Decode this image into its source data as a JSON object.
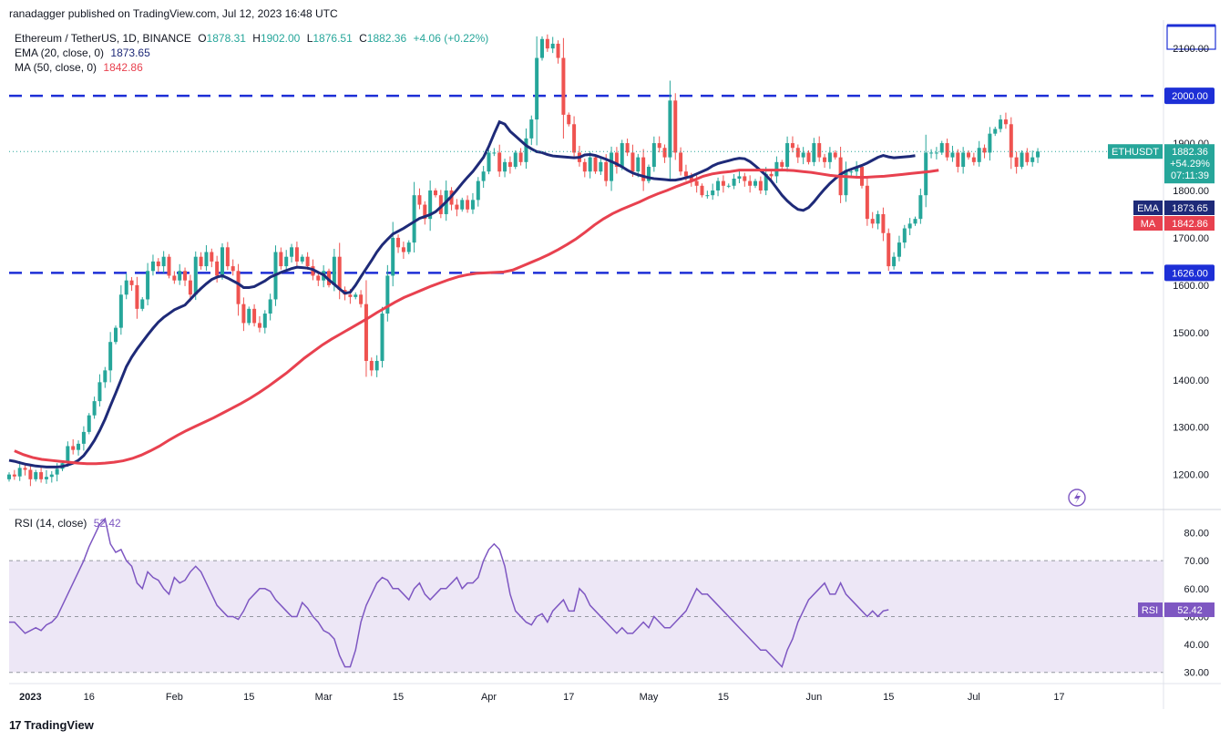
{
  "header": {
    "publisher_line": "ranadagger published on TradingView.com, Jul 12, 2023 16:48 UTC",
    "symbol": "Ethereum / TetherUS, 1D, BINANCE",
    "ohlc": {
      "open_label": "O",
      "open": "1878.31",
      "high_label": "H",
      "high": "1902.00",
      "low_label": "L",
      "low": "1876.51",
      "close_label": "C",
      "close": "1882.36",
      "change": "+4.06 (+0.22%)"
    },
    "ema_label": "EMA (20, close, 0)",
    "ema_value": "1873.65",
    "ma_label": "MA (50, close, 0)",
    "ma_value": "1842.86",
    "rsi_label": "RSI (14, close)",
    "rsi_value": "52.42"
  },
  "footer": {
    "brand": "TradingView",
    "logo_glyph": "17"
  },
  "colors": {
    "up": "#26a69a",
    "down": "#ef5350",
    "ema": "#1e2a78",
    "ma": "#e8414f",
    "level": "#1d2fd6",
    "rsi": "#7e57c2",
    "rsi_band": "#ede7f6",
    "label_bg": "#1d2fd6"
  },
  "chart_data": [
    {
      "type": "candlestick",
      "title": "Ethereum / TetherUS, 1D, BINANCE",
      "ylim": [
        1130,
        2160
      ],
      "y_ticks": [
        1200,
        1300,
        1400,
        1500,
        1600,
        1700,
        1800,
        1900,
        2000,
        2100
      ],
      "y_tick_labels": [
        "1200.00",
        "1300.00",
        "1400.00",
        "1500.00",
        "1600.00",
        "1700.00",
        "1800.00",
        "1900.00",
        "2000.00",
        "2100.00"
      ],
      "x_tick_labels": [
        {
          "day": 4,
          "label": "2023"
        },
        {
          "day": 15,
          "label": "16"
        },
        {
          "day": 31,
          "label": "Feb"
        },
        {
          "day": 45,
          "label": "15"
        },
        {
          "day": 59,
          "label": "Mar"
        },
        {
          "day": 73,
          "label": "15"
        },
        {
          "day": 90,
          "label": "Apr"
        },
        {
          "day": 105,
          "label": "17"
        },
        {
          "day": 120,
          "label": "May"
        },
        {
          "day": 134,
          "label": "15"
        },
        {
          "day": 151,
          "label": "Jun"
        },
        {
          "day": 165,
          "label": "15"
        },
        {
          "day": 181,
          "label": "Jul"
        },
        {
          "day": 197,
          "label": "17"
        }
      ],
      "horizontal_levels": [
        {
          "value": 2000,
          "label": "2000.00"
        },
        {
          "value": 1626,
          "label": "1626.00"
        }
      ],
      "price_tag": {
        "symbol": "ETHUSDT",
        "value": "1882.36",
        "change": "+54.29%",
        "countdown": "07:11:39"
      },
      "ema_tag": {
        "name": "EMA",
        "value": "1873.65"
      },
      "ma_tag": {
        "name": "MA",
        "value": "1842.86"
      },
      "closes": [
        1200,
        1196,
        1214,
        1210,
        1190,
        1205,
        1190,
        1195,
        1200,
        1212,
        1224,
        1260,
        1252,
        1265,
        1290,
        1325,
        1355,
        1395,
        1420,
        1480,
        1510,
        1580,
        1610,
        1600,
        1550,
        1570,
        1630,
        1650,
        1640,
        1660,
        1620,
        1610,
        1630,
        1610,
        1580,
        1660,
        1640,
        1670,
        1650,
        1620,
        1680,
        1640,
        1630,
        1560,
        1520,
        1550,
        1520,
        1510,
        1540,
        1570,
        1670,
        1640,
        1660,
        1680,
        1650,
        1660,
        1640,
        1620,
        1610,
        1630,
        1600,
        1660,
        1590,
        1580,
        1575,
        1580,
        1560,
        1440,
        1420,
        1440,
        1540,
        1620,
        1700,
        1680,
        1670,
        1690,
        1790,
        1770,
        1740,
        1800,
        1790,
        1750,
        1800,
        1770,
        1760,
        1780,
        1760,
        1780,
        1820,
        1840,
        1880,
        1880,
        1840,
        1860,
        1850,
        1880,
        1860,
        1910,
        1950,
        2080,
        2120,
        2100,
        2110,
        2080,
        1960,
        1940,
        1880,
        1860,
        1840,
        1870,
        1840,
        1860,
        1820,
        1880,
        1850,
        1900,
        1880,
        1840,
        1870,
        1820,
        1850,
        1900,
        1890,
        1870,
        1990,
        1880,
        1840,
        1830,
        1820,
        1810,
        1790,
        1790,
        1800,
        1820,
        1810,
        1810,
        1825,
        1830,
        1820,
        1810,
        1820,
        1800,
        1835,
        1830,
        1860,
        1850,
        1900,
        1890,
        1870,
        1880,
        1860,
        1900,
        1870,
        1860,
        1880,
        1870,
        1790,
        1840,
        1840,
        1850,
        1810,
        1740,
        1730,
        1750,
        1710,
        1640,
        1660,
        1690,
        1720,
        1730,
        1740,
        1790,
        1880,
        1880,
        1880,
        1900,
        1870,
        1880,
        1850,
        1880,
        1870,
        1860,
        1890,
        1880,
        1920,
        1930,
        1950,
        1940,
        1870,
        1850,
        1880,
        1860,
        1870,
        1882.36
      ],
      "ema_20": [
        1230,
        1228,
        1225,
        1222,
        1220,
        1218,
        1217,
        1216,
        1216,
        1216,
        1217,
        1220,
        1224,
        1230,
        1240,
        1255,
        1272,
        1293,
        1317,
        1345,
        1372,
        1400,
        1428,
        1448,
        1465,
        1480,
        1495,
        1509,
        1522,
        1532,
        1540,
        1548,
        1553,
        1558,
        1570,
        1582,
        1593,
        1603,
        1612,
        1617,
        1620,
        1615,
        1609,
        1603,
        1595,
        1595,
        1597,
        1603,
        1609,
        1617,
        1622,
        1627,
        1631,
        1635,
        1638,
        1637,
        1636,
        1633,
        1627,
        1622,
        1611,
        1602,
        1592,
        1583,
        1585,
        1600,
        1618,
        1635,
        1652,
        1670,
        1685,
        1697,
        1708,
        1714,
        1720,
        1727,
        1734,
        1741,
        1745,
        1749,
        1755,
        1765,
        1776,
        1788,
        1801,
        1815,
        1828,
        1840,
        1855,
        1870,
        1893,
        1920,
        1945,
        1940,
        1925,
        1915,
        1905,
        1895,
        1888,
        1882,
        1880,
        1876,
        1873,
        1872,
        1871,
        1870,
        1869,
        1870,
        1875,
        1876,
        1874,
        1870,
        1866,
        1861,
        1856,
        1850,
        1843,
        1837,
        1833,
        1830,
        1827,
        1825,
        1824,
        1823,
        1822,
        1822,
        1824,
        1827,
        1830,
        1835,
        1840,
        1845,
        1852,
        1857,
        1860,
        1863,
        1866,
        1868,
        1867,
        1861,
        1852,
        1842,
        1832,
        1820,
        1805,
        1790,
        1778,
        1768,
        1760,
        1758,
        1764,
        1776,
        1790,
        1803,
        1815,
        1825,
        1834,
        1841,
        1845,
        1849,
        1853,
        1858,
        1864,
        1870,
        1874,
        1871,
        1869,
        1870,
        1871,
        1872,
        1873.65
      ],
      "ma_50_start": 1,
      "ma_50": [
        1250,
        1242,
        1236,
        1232,
        1230,
        1228,
        1226,
        1224,
        1223,
        1223,
        1224,
        1226,
        1229,
        1234,
        1241,
        1250,
        1260,
        1272,
        1283,
        1293,
        1302,
        1311,
        1320,
        1330,
        1340,
        1350,
        1361,
        1373,
        1386,
        1400,
        1414,
        1430,
        1446,
        1460,
        1474,
        1486,
        1497,
        1508,
        1519,
        1530,
        1542,
        1553,
        1564,
        1574,
        1582,
        1590,
        1598,
        1605,
        1612,
        1618,
        1622,
        1625,
        1626,
        1627,
        1628,
        1632,
        1640,
        1648,
        1656,
        1665,
        1675,
        1686,
        1698,
        1712,
        1727,
        1740,
        1751,
        1760,
        1768,
        1776,
        1785,
        1793,
        1800,
        1808,
        1815,
        1822,
        1830,
        1835,
        1838,
        1840,
        1843,
        1843,
        1843,
        1843,
        1843,
        1843,
        1842,
        1840,
        1838,
        1835,
        1832,
        1830,
        1829,
        1828,
        1828,
        1829,
        1830,
        1832,
        1834,
        1836,
        1838,
        1840,
        1842.86
      ]
    },
    {
      "type": "line",
      "title": "RSI (14, close)",
      "ylim": [
        26,
        88
      ],
      "y_ticks": [
        30,
        40,
        50,
        60,
        70,
        80
      ],
      "y_tick_labels": [
        "30.00",
        "40.00",
        "50.00",
        "60.00",
        "70.00",
        "80.00"
      ],
      "band": [
        30,
        70
      ],
      "midline": 50,
      "rsi_tag": {
        "name": "RSI",
        "value": "52.42"
      },
      "values": [
        48,
        48,
        46,
        44,
        45,
        46,
        45,
        47,
        48,
        50,
        54,
        58,
        62,
        66,
        70,
        75,
        79,
        83,
        85,
        76,
        73,
        74,
        70,
        68,
        62,
        60,
        66,
        64,
        63,
        60,
        58,
        64,
        62,
        63,
        66,
        68,
        66,
        62,
        58,
        54,
        52,
        50,
        50,
        49,
        52,
        56,
        58,
        60,
        60,
        59,
        56,
        54,
        52,
        50,
        50,
        55,
        53,
        50,
        48,
        45,
        44,
        42,
        36,
        32,
        32,
        38,
        48,
        54,
        58,
        62,
        64,
        63,
        60,
        60,
        58,
        56,
        60,
        62,
        58,
        56,
        58,
        60,
        60,
        62,
        64,
        60,
        62,
        62,
        64,
        70,
        74,
        76,
        74,
        68,
        58,
        52,
        50,
        48,
        47,
        50,
        51,
        48,
        52,
        54,
        56,
        52,
        52,
        60,
        58,
        54,
        52,
        50,
        48,
        46,
        44,
        46,
        44,
        44,
        46,
        48,
        46,
        50,
        48,
        46,
        46,
        48,
        50,
        52,
        56,
        60,
        58,
        58,
        56,
        54,
        52,
        50,
        48,
        46,
        44,
        42,
        40,
        38,
        38,
        36,
        34,
        32,
        38,
        42,
        48,
        52,
        56,
        58,
        60,
        62,
        58,
        58,
        62,
        58,
        56,
        54,
        52,
        50,
        52,
        50,
        52,
        52.42
      ]
    }
  ]
}
